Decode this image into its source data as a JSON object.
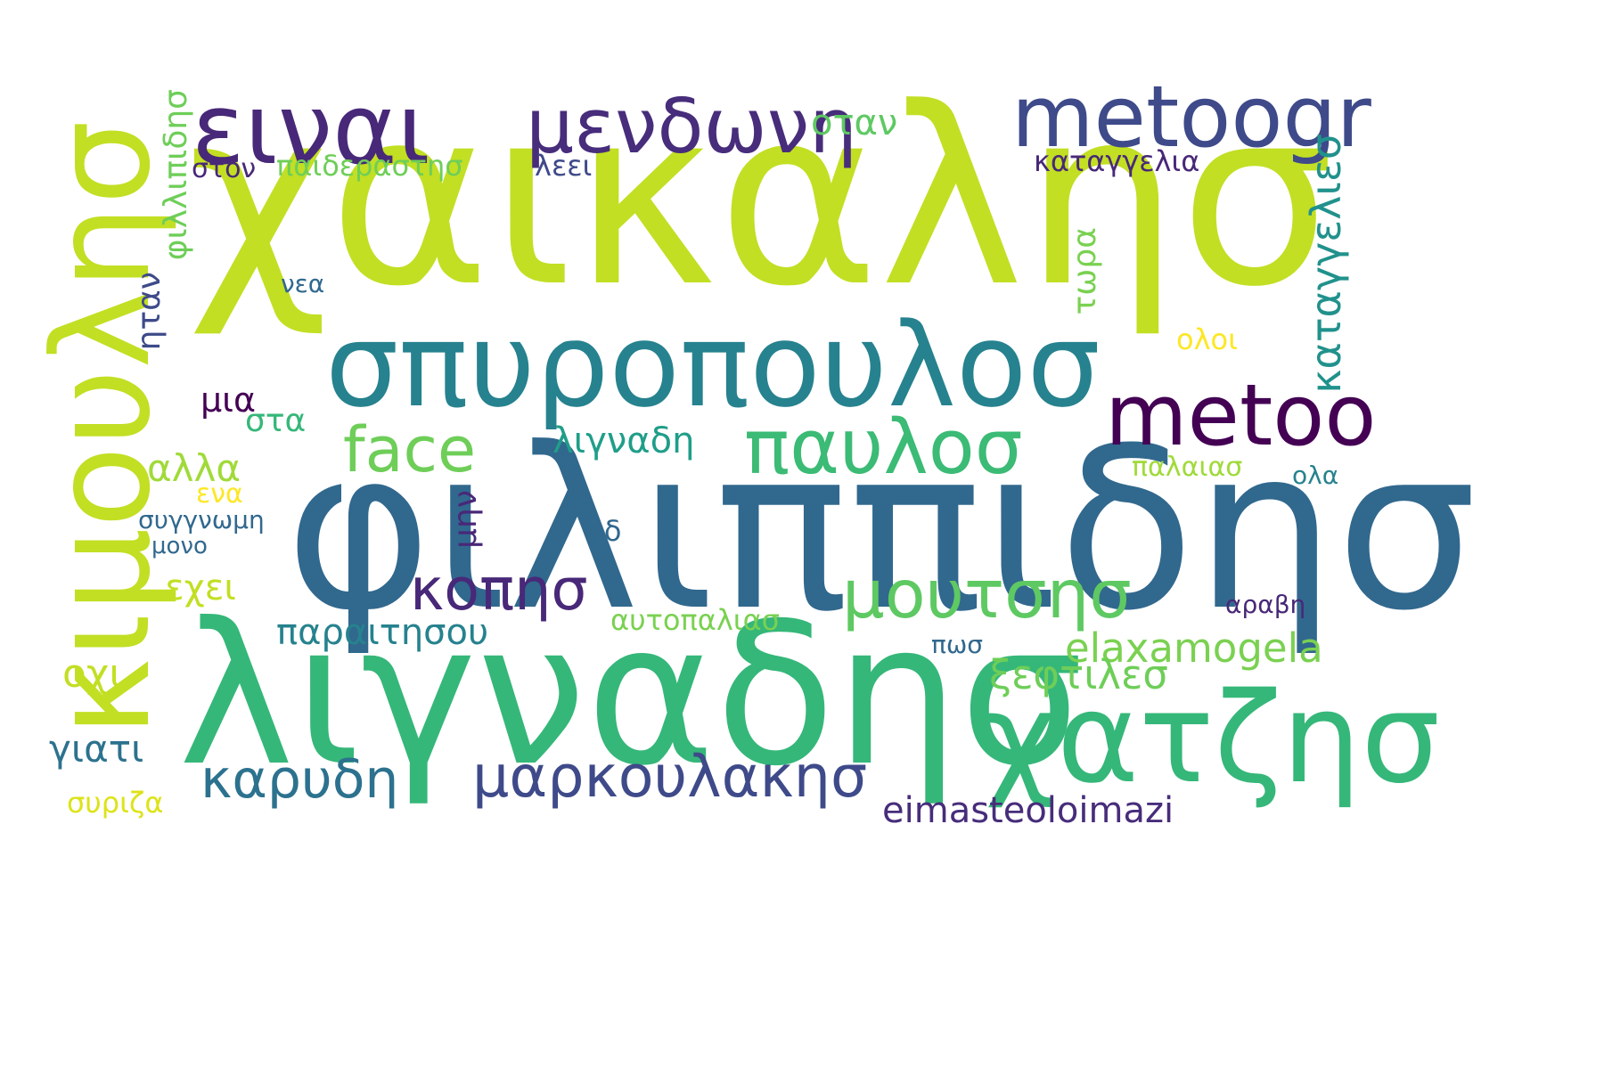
{
  "palette": [
    "#440154",
    "#482878",
    "#3e4a89",
    "#31688e",
    "#26828e",
    "#1f9e89",
    "#35b779",
    "#6ece58",
    "#b5de2b",
    "#fde725"
  ],
  "words": [
    {
      "text": "χαικαλησ",
      "color": "#c2df23"
    },
    {
      "text": "φιλιππιδησ",
      "color": "#31688e"
    },
    {
      "text": "λιγναδησ",
      "color": "#35b779"
    },
    {
      "text": "κιμουλησ",
      "color": "#c2df23"
    },
    {
      "text": "σπυροπουλοσ",
      "color": "#26828e"
    },
    {
      "text": "ειναι",
      "color": "#482878"
    },
    {
      "text": "metoogr",
      "color": "#3e4a89"
    },
    {
      "text": "χατζησ",
      "color": "#35b779"
    },
    {
      "text": "metoo",
      "color": "#440154"
    },
    {
      "text": "μενδωνη",
      "color": "#472d7b"
    },
    {
      "text": "παυλοσ",
      "color": "#3bbb75"
    },
    {
      "text": "μουτσησ",
      "color": "#5ec962"
    },
    {
      "text": "κοπησ",
      "color": "#482878"
    },
    {
      "text": "face",
      "color": "#6ece58"
    },
    {
      "text": "μαρκουλακησ",
      "color": "#3e4a89"
    },
    {
      "text": "καρυδη",
      "color": "#2c728e"
    },
    {
      "text": "elaxamogela",
      "color": "#7ad151"
    },
    {
      "text": "eimasteoloimazi",
      "color": "#472d7b"
    },
    {
      "text": "παραιτησου",
      "color": "#26828e"
    },
    {
      "text": "ξεφτιλεσ",
      "color": "#6ece58"
    },
    {
      "text": "λιγναδη",
      "color": "#1f9e89"
    },
    {
      "text": "καταγγελια",
      "color": "#482878"
    },
    {
      "text": "καταγγελιεσ",
      "color": "#21918c"
    },
    {
      "text": "παιδεραστησ",
      "color": "#6ece58"
    },
    {
      "text": "οταν",
      "color": "#5ec962"
    },
    {
      "text": "λεει",
      "color": "#3e4a89"
    },
    {
      "text": "στον",
      "color": "#482878"
    },
    {
      "text": "φιλλιπιδησ",
      "color": "#6ece58"
    },
    {
      "text": "ηταν",
      "color": "#3e4a89"
    },
    {
      "text": "νεα",
      "color": "#31688e"
    },
    {
      "text": "τωρα",
      "color": "#7ad151"
    },
    {
      "text": "ολοι",
      "color": "#fde725"
    },
    {
      "text": "μια",
      "color": "#440154"
    },
    {
      "text": "στα",
      "color": "#35b779"
    },
    {
      "text": "αλλα",
      "color": "#a0da39"
    },
    {
      "text": "ενα",
      "color": "#fde725"
    },
    {
      "text": "συγγνωμη",
      "color": "#31688e"
    },
    {
      "text": "μονο",
      "color": "#31688e"
    },
    {
      "text": "μην",
      "color": "#482878"
    },
    {
      "text": "νδ",
      "color": "#31688e"
    },
    {
      "text": "εχει",
      "color": "#c2df23"
    },
    {
      "text": "οχι",
      "color": "#c2df23"
    },
    {
      "text": "γιατι",
      "color": "#2c728e"
    },
    {
      "text": "συριζα",
      "color": "#dde318"
    },
    {
      "text": "παλαιασ",
      "color": "#a0da39"
    },
    {
      "text": "ολα",
      "color": "#26828e"
    },
    {
      "text": "αυτοπαλιασ",
      "color": "#7ad151"
    },
    {
      "text": "πωσ",
      "color": "#31688e"
    },
    {
      "text": "αραβη",
      "color": "#482878"
    }
  ]
}
